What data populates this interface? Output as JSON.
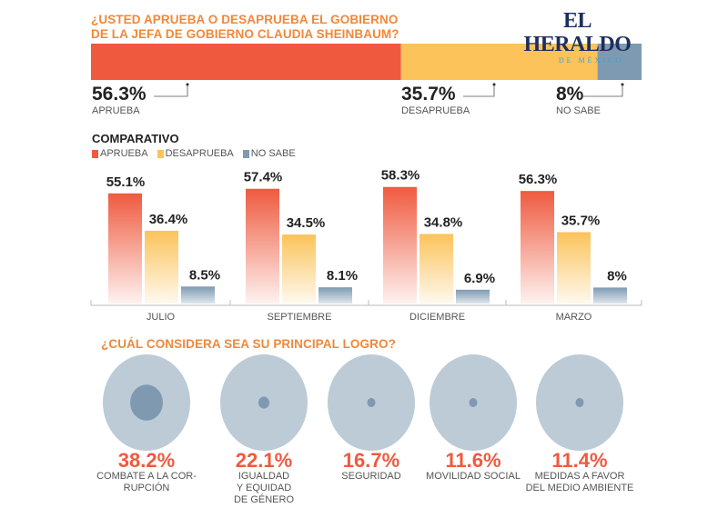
{
  "header": {
    "question_line1": "¿USTED APRUEBA O DESAPRUEBA EL GOBIERNO",
    "question_line2": "DE LA JEFA DE GOBIERNO CLAUDIA SHEINBAUM?",
    "logo_main": "EL HERALDO",
    "logo_sub": "DE MÉXICO"
  },
  "colors": {
    "aprueba": "#ef5a3f",
    "desaprueba": "#fbc35a",
    "no_sabe": "#7d9ab2",
    "accent": "#f0883a"
  },
  "chart_data": [
    {
      "type": "bar",
      "title": "¿USTED APRUEBA O DESAPRUEBA EL GOBIERNO DE LA JEFA DE GOBIERNO CLAUDIA SHEINBAUM?",
      "stacked": true,
      "categories": [
        "APRUEBA",
        "DESAPRUEBA",
        "NO SABE"
      ],
      "values": [
        56.3,
        35.7,
        8
      ],
      "value_labels": [
        "56.3%",
        "35.7%",
        "8%"
      ]
    },
    {
      "type": "bar",
      "title": "COMPARATIVO",
      "categories": [
        "JULIO",
        "SEPTIEMBRE",
        "DICIEMBRE",
        "MARZO"
      ],
      "legend": [
        "APRUEBA",
        "DESAPRUEBA",
        "NO SABE"
      ],
      "series": [
        {
          "name": "APRUEBA",
          "values": [
            55.1,
            57.4,
            58.3,
            56.3
          ],
          "labels": [
            "55.1%",
            "57.4%",
            "58.3%",
            "56.3%"
          ]
        },
        {
          "name": "DESAPRUEBA",
          "values": [
            36.4,
            34.5,
            34.8,
            35.7
          ],
          "labels": [
            "36.4%",
            "34.5%",
            "34.8%",
            "35.7%"
          ]
        },
        {
          "name": "NO SABE",
          "values": [
            8.5,
            8.1,
            6.9,
            8
          ],
          "labels": [
            "8.5%",
            "8.1%",
            "6.9%",
            "8%"
          ]
        }
      ],
      "ylim": [
        0,
        60
      ]
    },
    {
      "type": "bubble",
      "title": "¿CUÁL CONSIDERA SEA SU PRINCIPAL LOGRO?",
      "categories": [
        "COMBATE A LA CORRUPCIÓN",
        "IGUALDAD Y EQUIDAD DE GÉNERO",
        "SEGURIDAD",
        "MOVILIDAD SOCIAL",
        "MEDIDAS A FAVOR DEL MEDIO AMBIENTE"
      ],
      "values": [
        38.2,
        22.1,
        16.7,
        11.6,
        11.4
      ],
      "value_labels": [
        "38.2%",
        "22.1%",
        "16.7%",
        "11.6%",
        "11.4%"
      ],
      "display_labels": [
        [
          "COMBATE A LA COR-",
          "RUPCIÓN"
        ],
        [
          "IGUALDAD",
          "Y EQUIDAD",
          "DE GÉNERO"
        ],
        [
          "SEGURIDAD"
        ],
        [
          "MOVILIDAD SOCIAL"
        ],
        [
          "MEDIDAS A FAVOR",
          "DEL MEDIO AMBIENTE"
        ]
      ]
    }
  ]
}
